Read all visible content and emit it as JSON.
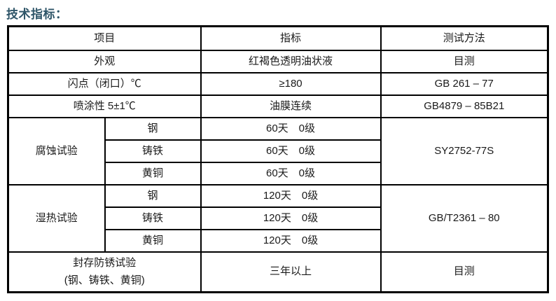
{
  "page": {
    "title": "技术指标："
  },
  "colors": {
    "title_accent": "#2E5568",
    "border": "#000000",
    "text": "#1a1a1a",
    "background": "#ffffff"
  },
  "table": {
    "headers": {
      "item": "项目",
      "indicator": "指标",
      "method": "测试方法"
    },
    "rows": {
      "appearance": {
        "item": "外观",
        "indicator": "红褐色透明油状液",
        "method": "目测"
      },
      "flash_point": {
        "item": "闪点（闭口）℃",
        "indicator": "≥180",
        "method": "GB 261 – 77"
      },
      "sprayability": {
        "item": "喷涂性 5±1℃",
        "indicator": "油膜连续",
        "method": "GB4879 – 85B21"
      },
      "sealed_rust": {
        "item_line1": "封存防锈试验",
        "item_line2": "(钢、铸铁、黄铜)",
        "indicator": "三年以上",
        "method": "目测"
      }
    },
    "groups": {
      "corrosion": {
        "label": "腐蚀试验",
        "method": "SY2752-77S",
        "sub": [
          {
            "material": "钢",
            "value": "60天　0级"
          },
          {
            "material": "铸铁",
            "value": "60天　0级"
          },
          {
            "material": "黄铜",
            "value": "60天　0级"
          }
        ]
      },
      "damp_heat": {
        "label": "湿热试验",
        "method": "GB/T2361 – 80",
        "sub": [
          {
            "material": "钢",
            "value": "120天　0级"
          },
          {
            "material": "铸铁",
            "value": "120天　0级"
          },
          {
            "material": "黄铜",
            "value": "120天　0级"
          }
        ]
      }
    }
  }
}
